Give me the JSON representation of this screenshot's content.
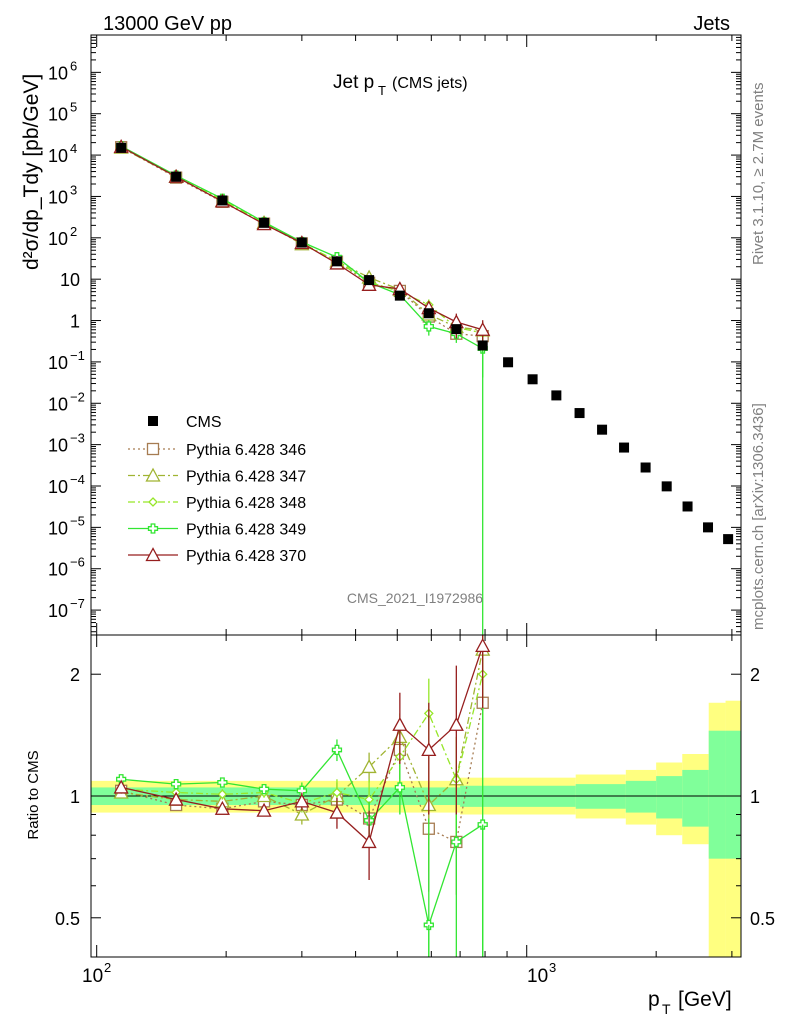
{
  "header": {
    "left": "13000 GeV pp",
    "right": "Jets"
  },
  "side": {
    "rivet": "Rivet 3.1.10, ≥ 2.7M events",
    "mcplots": "mcplots.cern.ch [arXiv:1306.3436]"
  },
  "chart_data": {
    "type": "scatter",
    "title_main": "Jet p",
    "title_sub": "T",
    "title_extra": "(CMS jets)",
    "analysis_tag": "CMS_2021_I1972986",
    "xlabel": "p",
    "xlabel_sub": "T",
    "xlabel_unit": "[GeV]",
    "ylabel": "d²σ/dp_Tdy [pb/GeV]",
    "ratio_ylabel": "Ratio to CMS",
    "x_log": true,
    "xlim": [
      97,
      3150
    ],
    "x_tick_labels": [
      "10",
      "2",
      "10",
      "3"
    ],
    "main": {
      "y_log": true,
      "ylim": [
        2.5e-08,
        8000000.0
      ],
      "y_tick_labels": [
        {
          "base": "10",
          "exp": "6",
          "v": 1000000.0
        },
        {
          "base": "10",
          "exp": "5",
          "v": 100000.0
        },
        {
          "base": "10",
          "exp": "4",
          "v": 10000.0
        },
        {
          "base": "10",
          "exp": "3",
          "v": 1000.0
        },
        {
          "base": "10",
          "exp": "2",
          "v": 100.0
        },
        {
          "base": "10",
          "exp": "",
          "v": 10
        },
        {
          "base": "1",
          "exp": "",
          "v": 1
        },
        {
          "base": "10",
          "exp": "−1",
          "v": 0.1
        },
        {
          "base": "10",
          "exp": "−2",
          "v": 0.01
        },
        {
          "base": "10",
          "exp": "−3",
          "v": 0.001
        },
        {
          "base": "10",
          "exp": "−4",
          "v": 0.0001
        },
        {
          "base": "10",
          "exp": "−5",
          "v": 1e-05
        },
        {
          "base": "10",
          "exp": "−6",
          "v": 1e-06
        },
        {
          "base": "10",
          "exp": "−7",
          "v": 1e-07
        }
      ]
    },
    "ratio": {
      "y_log": true,
      "ylim": [
        0.4,
        2.5
      ],
      "y_tick_labels": [
        {
          "label": "0.5",
          "v": 0.5
        },
        {
          "label": "1",
          "v": 1
        },
        {
          "label": "2",
          "v": 2
        }
      ],
      "band_inner": [
        {
          "x0": 97,
          "x1": 700,
          "lo": 0.95,
          "hi": 1.05
        },
        {
          "x0": 700,
          "x1": 1300,
          "lo": 0.94,
          "hi": 1.06
        },
        {
          "x0": 1300,
          "x1": 1700,
          "lo": 0.93,
          "hi": 1.07
        },
        {
          "x0": 1700,
          "x1": 2000,
          "lo": 0.91,
          "hi": 1.09
        },
        {
          "x0": 2000,
          "x1": 2300,
          "lo": 0.88,
          "hi": 1.12
        },
        {
          "x0": 2300,
          "x1": 2650,
          "lo": 0.84,
          "hi": 1.16
        },
        {
          "x0": 2650,
          "x1": 2900,
          "lo": 0.7,
          "hi": 1.45
        },
        {
          "x0": 2900,
          "x1": 3150,
          "lo": 0.7,
          "hi": 1.45
        }
      ],
      "band_outer": [
        {
          "x0": 97,
          "x1": 700,
          "lo": 0.91,
          "hi": 1.09
        },
        {
          "x0": 700,
          "x1": 1300,
          "lo": 0.9,
          "hi": 1.11
        },
        {
          "x0": 1300,
          "x1": 1700,
          "lo": 0.88,
          "hi": 1.13
        },
        {
          "x0": 1700,
          "x1": 2000,
          "lo": 0.85,
          "hi": 1.16
        },
        {
          "x0": 2000,
          "x1": 2300,
          "lo": 0.8,
          "hi": 1.21
        },
        {
          "x0": 2300,
          "x1": 2650,
          "lo": 0.76,
          "hi": 1.27
        },
        {
          "x0": 2650,
          "x1": 2900,
          "lo": 0.4,
          "hi": 1.7
        },
        {
          "x0": 2900,
          "x1": 3150,
          "lo": 0.4,
          "hi": 1.72
        }
      ]
    },
    "cms": {
      "name": "CMS",
      "color": "#000000",
      "x": [
        114,
        153,
        196,
        245,
        300,
        362,
        430,
        507,
        592,
        686,
        790,
        905,
        1032,
        1172,
        1327,
        1497,
        1684,
        1890,
        2116,
        2366,
        2640,
        2940
      ],
      "y": [
        15000,
        3000,
        800,
        230,
        77,
        27,
        9.5,
        4.0,
        1.5,
        0.62,
        0.25,
        0.098,
        0.038,
        0.0155,
        0.0058,
        0.0023,
        0.00085,
        0.00028,
        9.8e-05,
        3.2e-05,
        1e-05,
        5.2e-06
      ]
    },
    "x": [
      114,
      153,
      196,
      245,
      300,
      362,
      430,
      507,
      592,
      686,
      790
    ],
    "series": [
      {
        "name": "Pythia 6.428 346",
        "color": "#a67c52",
        "dash": "2,3",
        "marker": "square",
        "y": [
          15500,
          2850,
          740,
          220,
          73,
          26.5,
          8.2,
          5.2,
          1.25,
          0.48,
          0.42
        ],
        "ratio": [
          1.03,
          0.95,
          0.93,
          0.97,
          0.95,
          0.98,
          0.88,
          1.3,
          0.83,
          0.77,
          1.7
        ],
        "rerr": [
          0.02,
          0.02,
          0.02,
          0.03,
          0.05,
          0.07,
          0.1,
          0.2,
          0.25,
          0.2,
          0.4
        ]
      },
      {
        "name": "Pythia 6.428 347",
        "color": "#a0b432",
        "dash": "7,3,2,3",
        "marker": "triangle",
        "y": [
          15200,
          3000,
          770,
          230,
          70,
          27,
          11.0,
          5.6,
          1.4,
          0.7,
          0.58
        ],
        "ratio": [
          1.02,
          0.98,
          0.97,
          1.0,
          0.9,
          1.0,
          1.18,
          1.4,
          0.95,
          1.1,
          2.3
        ],
        "rerr": [
          0.02,
          0.02,
          0.03,
          0.03,
          0.05,
          0.08,
          0.1,
          0.2,
          0.3,
          0.3,
          0.6
        ]
      },
      {
        "name": "Pythia 6.428 348",
        "color": "#96e628",
        "dash": "7,3,2,3",
        "marker": "diamond",
        "y": [
          15600,
          3100,
          820,
          235,
          74,
          27.5,
          8.5,
          5.0,
          2.4,
          0.68,
          0.5
        ],
        "ratio": [
          1.04,
          1.02,
          1.01,
          1.02,
          0.96,
          1.02,
          0.98,
          1.25,
          1.6,
          1.1,
          2.0
        ],
        "rerr": [
          0.02,
          0.02,
          0.03,
          0.03,
          0.05,
          0.08,
          0.12,
          0.2,
          0.35,
          0.3,
          0.5
        ]
      },
      {
        "name": "Pythia 6.428 349",
        "color": "#32e632",
        "dash": "",
        "marker": "cross",
        "y": [
          16500,
          3200,
          880,
          240,
          79,
          34,
          8.3,
          4.2,
          0.72,
          0.48,
          0.21
        ],
        "ratio": [
          1.1,
          1.07,
          1.08,
          1.04,
          1.03,
          1.3,
          0.87,
          1.05,
          0.48,
          0.77,
          0.85
        ],
        "rerr": [
          0.02,
          0.02,
          0.03,
          0.03,
          0.05,
          0.08,
          0.1,
          0.15,
          0.4,
          0.4,
          0.8
        ]
      },
      {
        "name": "Pythia 6.428 370",
        "color": "#961e1e",
        "dash": "",
        "marker": "triangle",
        "y": [
          15800,
          3000,
          760,
          215,
          75,
          24,
          7.3,
          5.8,
          2.0,
          0.92,
          0.6
        ],
        "ratio": [
          1.05,
          0.98,
          0.93,
          0.92,
          0.97,
          0.91,
          0.77,
          1.5,
          1.3,
          1.5,
          2.35
        ],
        "rerr": [
          0.02,
          0.02,
          0.03,
          0.03,
          0.05,
          0.08,
          0.15,
          0.3,
          0.4,
          0.6,
          0.7
        ]
      }
    ]
  }
}
